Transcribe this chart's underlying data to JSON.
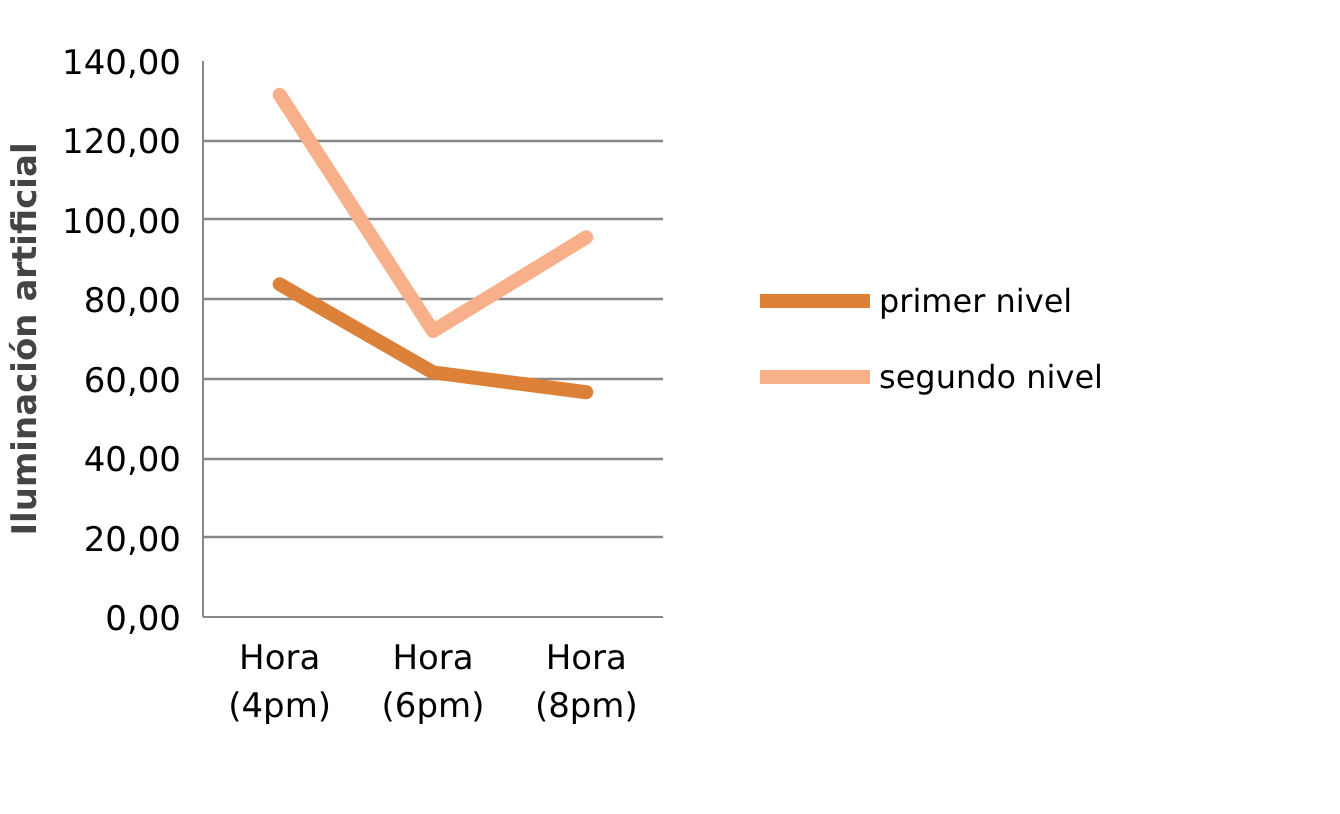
{
  "chart_data": {
    "type": "line",
    "ylabel": "Iluminación artificial",
    "categories": [
      "Hora (4pm)",
      "Hora (6pm)",
      "Hora (8pm)"
    ],
    "series": [
      {
        "name": "primer nivel",
        "color": "#dd8038",
        "values": [
          83.8,
          61.6,
          56.6
        ]
      },
      {
        "name": "segundo nivel",
        "color": "#f7b08a",
        "values": [
          131.5,
          72,
          95.6
        ]
      }
    ],
    "ylim": [
      0,
      140
    ],
    "yticks": [
      {
        "value": 0,
        "label": "0,00"
      },
      {
        "value": 20,
        "label": "20,00"
      },
      {
        "value": 40,
        "label": "40,00"
      },
      {
        "value": 60,
        "label": "60,00"
      },
      {
        "value": 80,
        "label": "80,00"
      },
      {
        "value": 100,
        "label": "100,00"
      },
      {
        "value": 120,
        "label": "120,00"
      },
      {
        "value": 140,
        "label": "140,00"
      }
    ],
    "grid": "y",
    "legend": "right",
    "marker": "none",
    "line_style": "solid"
  }
}
